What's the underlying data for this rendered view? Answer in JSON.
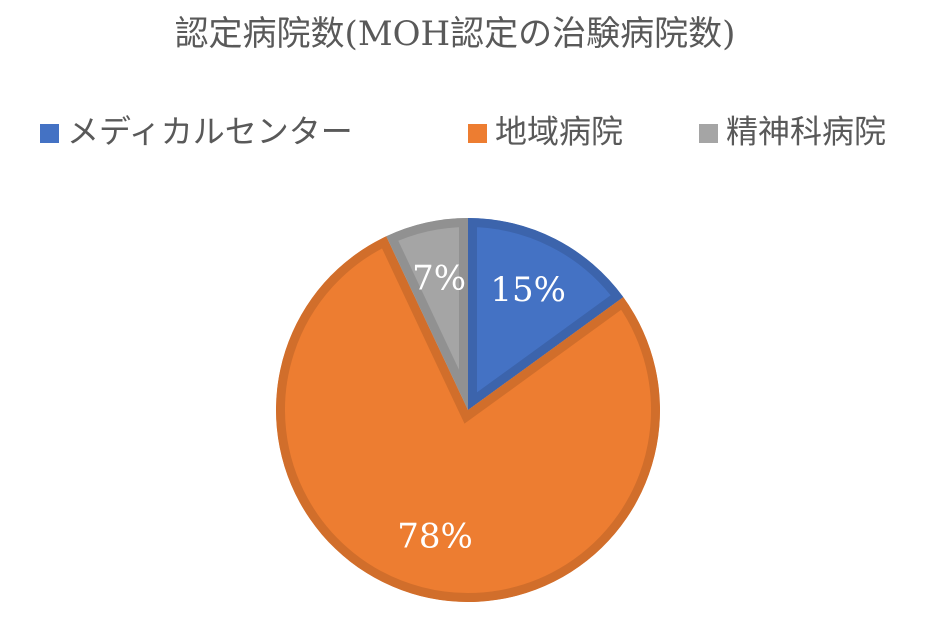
{
  "chart_data": {
    "type": "pie",
    "title": "認定病院数(MOH認定の治験病院数)",
    "categories": [
      "メディカルセンター",
      "地域病院",
      "精神科病院"
    ],
    "values": [
      15,
      78,
      7
    ],
    "value_labels": [
      "15%",
      "78%",
      "7%"
    ],
    "colors": [
      "#4472c4",
      "#ed7d31",
      "#a5a5a5"
    ],
    "legend": "top"
  }
}
